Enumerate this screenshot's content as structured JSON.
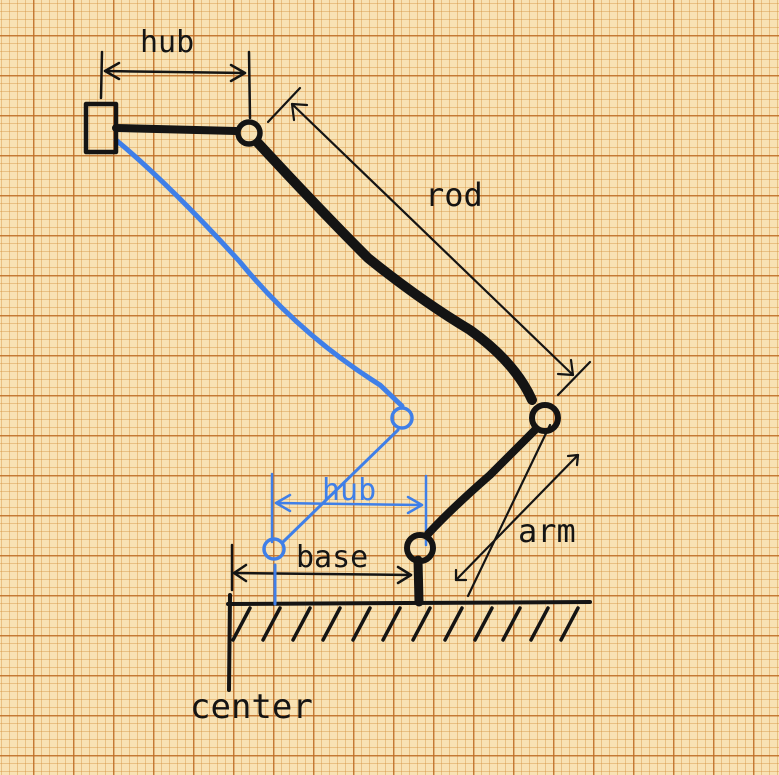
{
  "labels": {
    "hub_top": "hub",
    "rod": "rod",
    "hub_bottom": "hub",
    "base": "base",
    "arm": "arm",
    "center": "center"
  },
  "colors": {
    "ink": "#141414",
    "blue": "#3f7fe8",
    "paper": "#f8e2b4",
    "grid": "#be6e28"
  }
}
